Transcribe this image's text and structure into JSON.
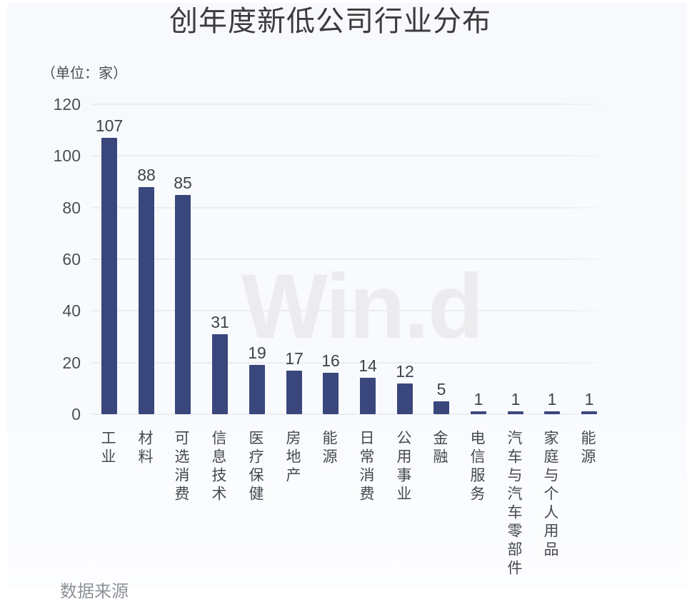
{
  "title": "创年度新低公司行业分布",
  "unit_label": "（单位：家）",
  "watermark": "Win.d",
  "footer_source": "数据来源",
  "colors": {
    "bar": "#3a477d",
    "panel_background": "#f8fafd",
    "gridline": "#ebedf0",
    "title_text": "#3b3b3d",
    "axis_text": "#4c4f56",
    "value_text": "#3f424a",
    "watermark_text": "#ececee"
  },
  "chart_data": {
    "type": "bar",
    "title": "创年度新低公司行业分布",
    "subtitle": "（单位：家）",
    "categories": [
      "工业",
      "材料",
      "可选消费",
      "信息技术",
      "医疗保健",
      "房地产",
      "能源",
      "日常消费",
      "公用事业",
      "金融",
      "电信服务",
      "汽车与汽车零部件",
      "家庭与个人用品",
      "能源"
    ],
    "values": [
      107,
      88,
      85,
      31,
      19,
      17,
      16,
      14,
      12,
      5,
      1,
      1,
      1,
      1
    ],
    "xlabel": "",
    "ylabel": "（单位：家）",
    "ylim": [
      0,
      120
    ],
    "yticks": [
      0,
      20,
      40,
      60,
      80,
      100,
      120
    ],
    "grid": true,
    "legend": "none",
    "value_labels": true,
    "watermark": "Win.d"
  }
}
